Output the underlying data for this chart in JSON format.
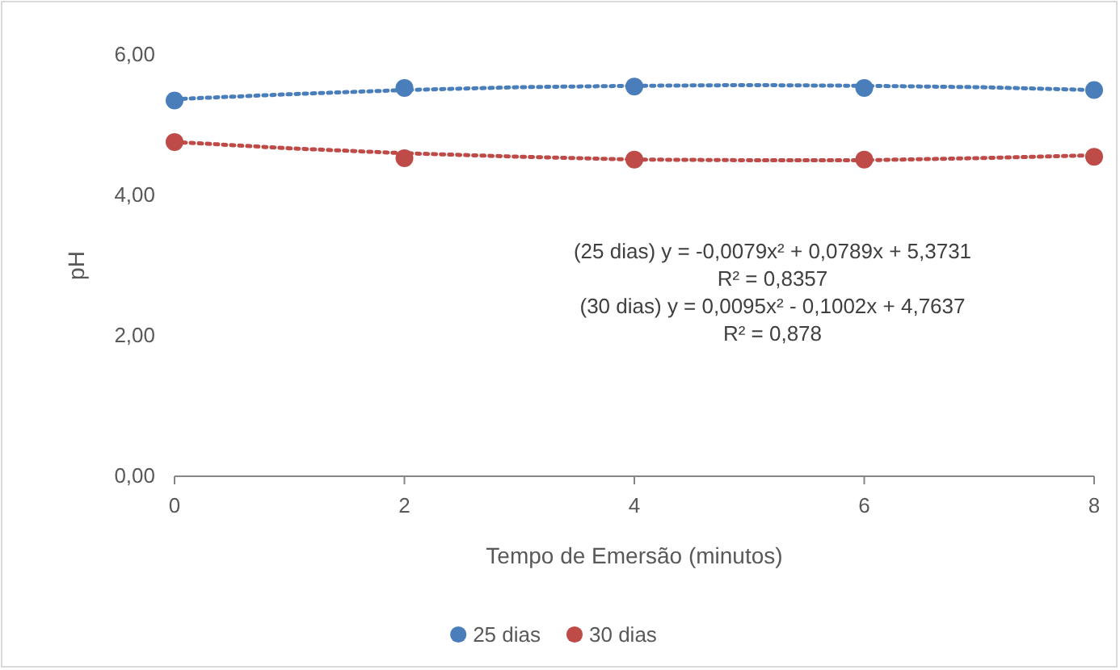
{
  "chart_data": {
    "type": "scatter",
    "xlabel": "Tempo de Emersão (minutos)",
    "ylabel": "pH",
    "xlim": [
      0,
      8
    ],
    "xticks": [
      0,
      2,
      4,
      6,
      8
    ],
    "ylim": [
      0,
      6
    ],
    "yticks": [
      {
        "value": 0,
        "label": "0,00"
      },
      {
        "value": 2,
        "label": "2,00"
      },
      {
        "value": 4,
        "label": "4,00"
      },
      {
        "value": 6,
        "label": "6,00"
      }
    ],
    "grid": false,
    "legend": "bottom",
    "marker": "circle",
    "x": [
      0,
      2,
      4,
      6,
      8
    ],
    "series": [
      {
        "name": "25 dias",
        "color": "#4a7ebb",
        "values": [
          5.35,
          5.53,
          5.55,
          5.53,
          5.5
        ]
      },
      {
        "name": "30 dias",
        "color": "#be4b48",
        "values": [
          4.76,
          4.53,
          4.51,
          4.51,
          4.55
        ]
      },
      {
        "type": "line",
        "line_style": "dotted",
        "marker": "none",
        "color": "#4a7ebb",
        "x": [
          0,
          1,
          2,
          3,
          4,
          5,
          6,
          7,
          8
        ],
        "values": [
          5.37,
          5.44,
          5.5,
          5.54,
          5.56,
          5.57,
          5.56,
          5.54,
          5.5
        ]
      },
      {
        "type": "line",
        "line_style": "dotted",
        "marker": "none",
        "color": "#be4b48",
        "x": [
          0,
          1,
          2,
          3,
          4,
          5,
          6,
          7,
          8
        ],
        "values": [
          4.76,
          4.67,
          4.6,
          4.55,
          4.51,
          4.5,
          4.5,
          4.53,
          4.57
        ]
      }
    ],
    "annotations": [
      "(25 dias) y = -0,0079x² + 0,0789x + 5,3731",
      "R² = 0,8357",
      "(30 dias) y = 0,0095x² - 0,1002x + 4,7637",
      "R² = 0,878"
    ]
  }
}
